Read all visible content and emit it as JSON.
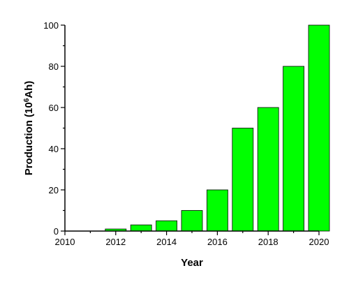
{
  "chart_data": {
    "type": "bar",
    "title": "",
    "xlabel": "Year",
    "ylabel": {
      "prefix": "Production (10",
      "sup": "6",
      "suffix": "Ah)"
    },
    "x": [
      2012,
      2013,
      2014,
      2015,
      2016,
      2017,
      2018,
      2019,
      2020
    ],
    "values": [
      1,
      3,
      5,
      10,
      20,
      50,
      60,
      80,
      100
    ],
    "xlim": [
      2010,
      2020
    ],
    "ylim": [
      0,
      100
    ],
    "x_ticks": [
      2010,
      2012,
      2014,
      2016,
      2018,
      2020
    ],
    "y_ticks": [
      0,
      20,
      40,
      60,
      80,
      100
    ],
    "grid": false,
    "bar_color": "#00ff00",
    "legend": "none"
  }
}
